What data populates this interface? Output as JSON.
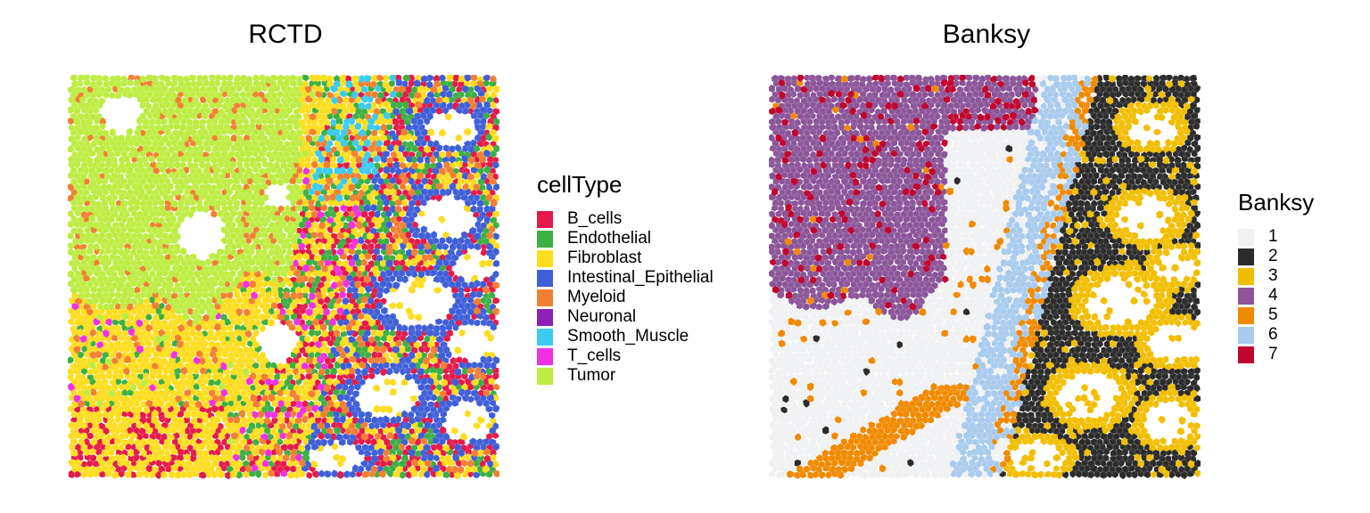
{
  "chart_data": [
    {
      "type": "scatter",
      "title": "RCTD",
      "legend_title": "cellType",
      "legend_position": "right",
      "grid": false,
      "axes": "none",
      "categories": [
        {
          "label": "B_cells",
          "color": "#E41A4A"
        },
        {
          "label": "Endothelial",
          "color": "#3BB044"
        },
        {
          "label": "Fibroblast",
          "color": "#FDDD1E"
        },
        {
          "label": "Intestinal_Epithelial",
          "color": "#3F5FD8"
        },
        {
          "label": "Myeloid",
          "color": "#F28033"
        },
        {
          "label": "Neuronal",
          "color": "#8A23B5"
        },
        {
          "label": "Smooth_Muscle",
          "color": "#3BCBEF"
        },
        {
          "label": "T_cells",
          "color": "#F031E3"
        },
        {
          "label": "Tumor",
          "color": "#BDED42"
        }
      ]
    },
    {
      "type": "scatter",
      "title": "Banksy",
      "legend_title": "Banksy",
      "legend_position": "right",
      "grid": false,
      "axes": "none",
      "categories": [
        {
          "label": "1",
          "color": "#F0F1F3"
        },
        {
          "label": "2",
          "color": "#2B2B2B"
        },
        {
          "label": "3",
          "color": "#F2BE00"
        },
        {
          "label": "4",
          "color": "#8B5599"
        },
        {
          "label": "5",
          "color": "#F08A00"
        },
        {
          "label": "6",
          "color": "#A9CBEE"
        },
        {
          "label": "7",
          "color": "#C0062F"
        }
      ]
    }
  ]
}
